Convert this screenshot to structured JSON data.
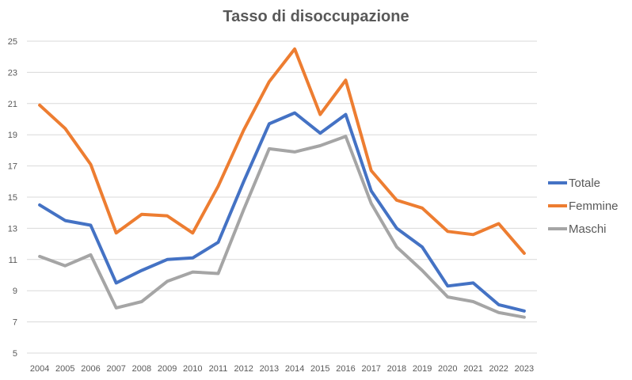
{
  "chart_data": {
    "type": "line",
    "title": "Tasso di disoccupazione",
    "xlabel": "",
    "ylabel": "",
    "x": [
      "2004",
      "2005",
      "2006",
      "2007",
      "2008",
      "2009",
      "2010",
      "2011",
      "2012",
      "2013",
      "2014",
      "2015",
      "2016",
      "2017",
      "2018",
      "2019",
      "2020",
      "2021",
      "2022",
      "2023"
    ],
    "ylim": [
      5,
      25
    ],
    "yticks": [
      5,
      7,
      9,
      11,
      13,
      15,
      17,
      19,
      21,
      23,
      25
    ],
    "grid": "horizontal",
    "legend_position": "right",
    "series": [
      {
        "name": "Totale",
        "color": "#4472C4",
        "values": [
          14.5,
          13.5,
          13.2,
          9.5,
          10.3,
          11.0,
          11.1,
          12.1,
          16.0,
          19.7,
          20.4,
          19.1,
          20.3,
          15.4,
          13.0,
          11.8,
          9.3,
          9.5,
          8.1,
          7.7
        ]
      },
      {
        "name": "Femmine",
        "color": "#ED7D31",
        "values": [
          20.9,
          19.4,
          17.1,
          12.7,
          13.9,
          13.8,
          12.7,
          15.7,
          19.3,
          22.4,
          24.5,
          20.3,
          22.5,
          16.7,
          14.8,
          14.3,
          12.8,
          12.6,
          13.3,
          11.4
        ]
      },
      {
        "name": "Maschi",
        "color": "#A5A5A5",
        "values": [
          11.2,
          10.6,
          11.3,
          7.9,
          8.3,
          9.6,
          10.2,
          10.1,
          14.2,
          18.1,
          17.9,
          18.3,
          18.9,
          14.6,
          11.8,
          10.3,
          8.6,
          8.3,
          7.6,
          7.3
        ]
      }
    ]
  },
  "colors": {
    "grid": "#D9D9D9",
    "text": "#595959",
    "background": "#FFFFFF"
  }
}
